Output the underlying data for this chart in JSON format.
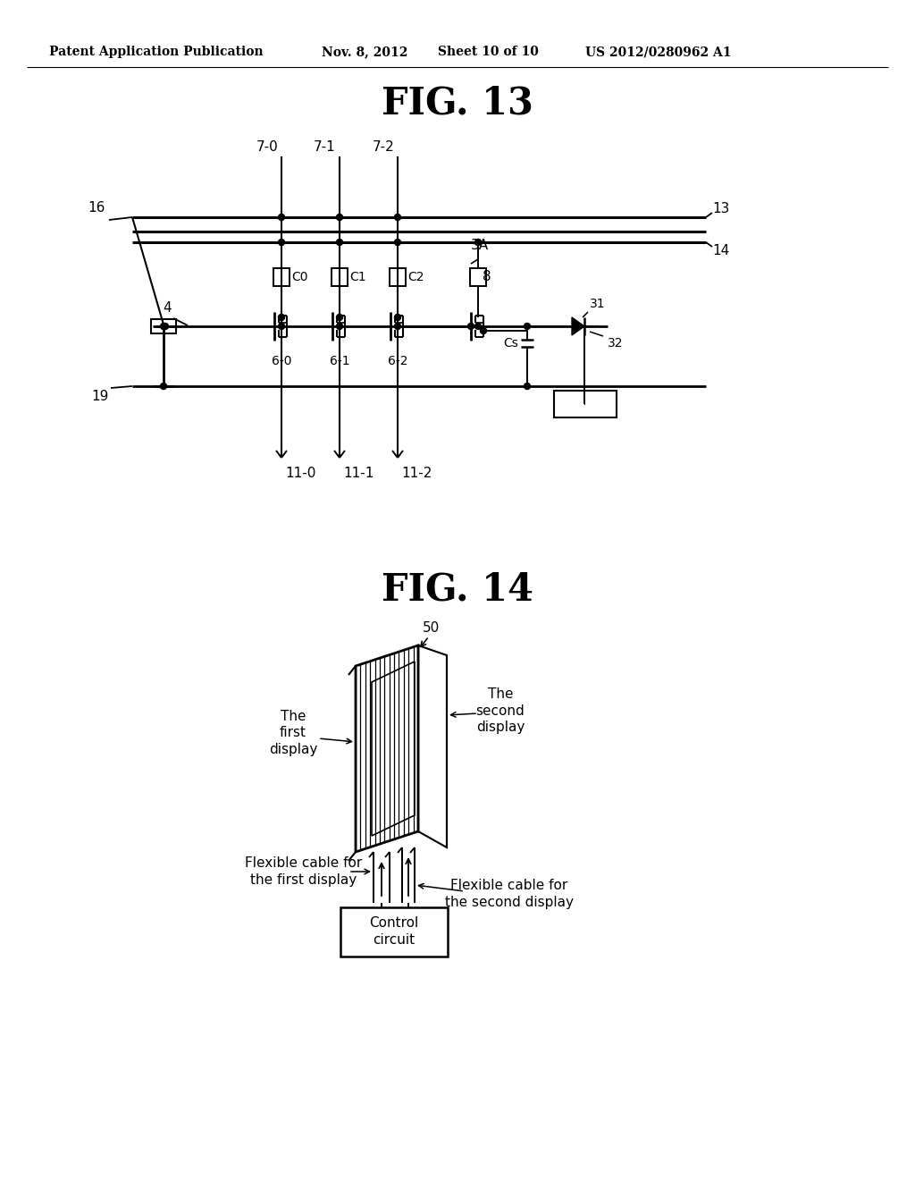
{
  "bg_color": "#ffffff",
  "header_text": "Patent Application Publication",
  "header_date": "Nov. 8, 2012",
  "header_sheet": "Sheet 10 of 10",
  "header_patent": "US 2012/0280962 A1",
  "fig13_title": "FIG. 13",
  "fig14_title": "FIG. 14",
  "line_color": "#000000",
  "label_fontsize": 11,
  "title_fontsize": 28,
  "header_fontsize": 10
}
